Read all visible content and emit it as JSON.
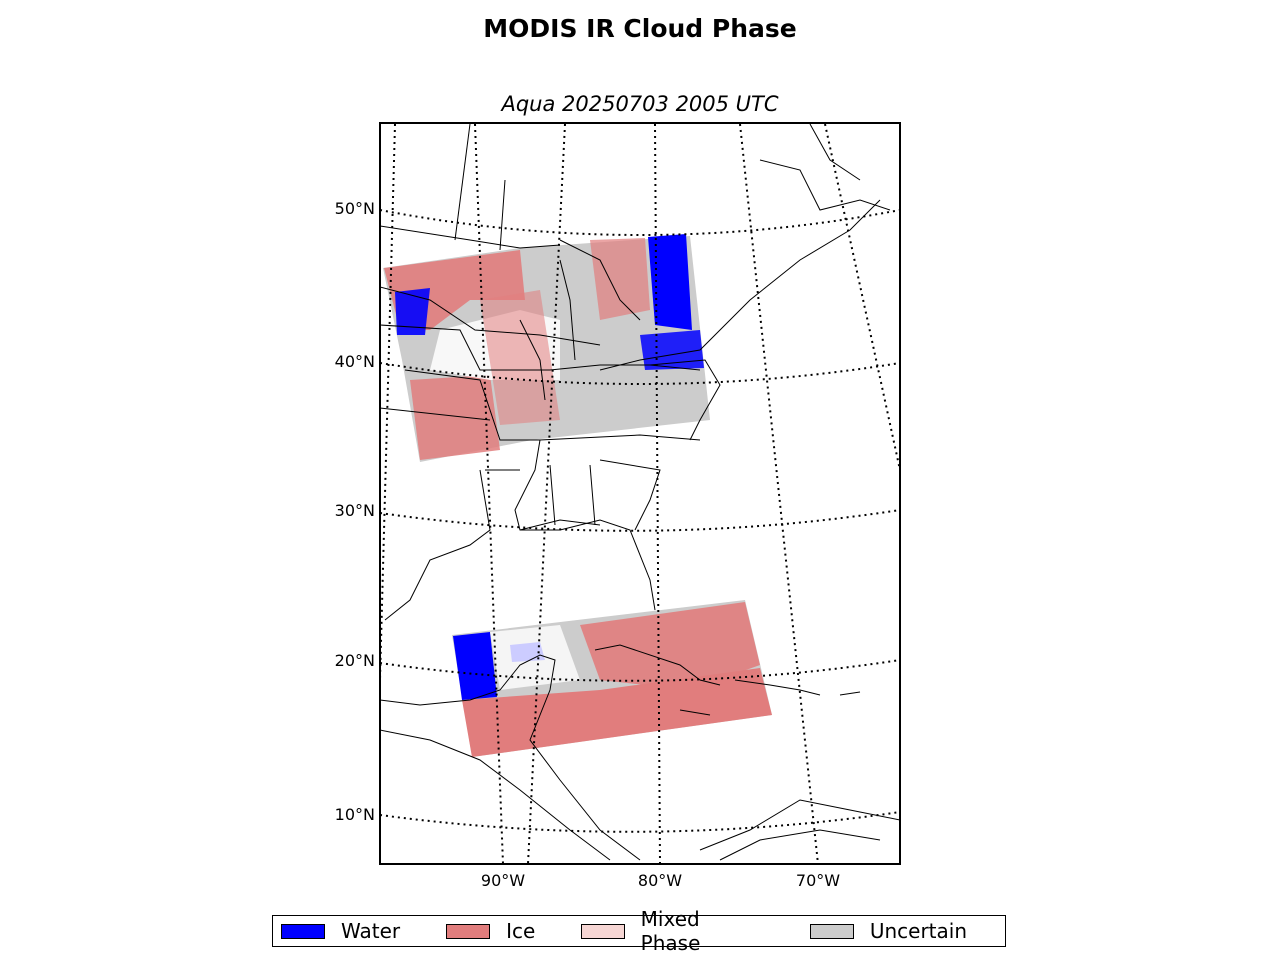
{
  "header": {
    "title": "MODIS IR Cloud Phase",
    "subtitle": "Aqua 20250703 2005 UTC"
  },
  "map": {
    "latitude_labels": [
      "50°N",
      "40°N",
      "30°N",
      "20°N",
      "10°N"
    ],
    "longitude_labels": [
      "90°W",
      "80°W",
      "70°W"
    ],
    "colors": {
      "water": "#0000ff",
      "ice": "#e17d7d",
      "mixed": "#f6d6d4",
      "uncertain": "#cccccc",
      "coast": "#000000"
    }
  },
  "legend": {
    "items": [
      {
        "label": "Water",
        "color": "#0000ff"
      },
      {
        "label": "Ice",
        "color": "#e17d7d"
      },
      {
        "label": "Mixed Phase",
        "color": "#f6d6d4"
      },
      {
        "label": "Uncertain",
        "color": "#cccccc"
      }
    ]
  }
}
